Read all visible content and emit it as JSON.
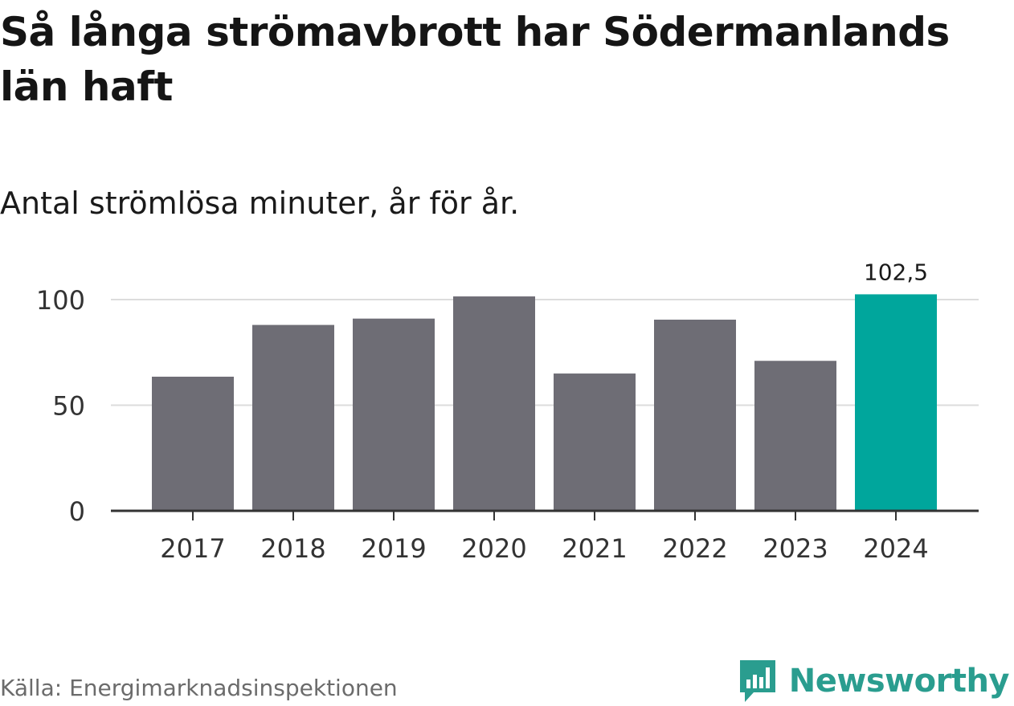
{
  "header": {
    "title": "Så långa strömavbrott har Södermanlands län haft",
    "subtitle": "Antal strömlösa minuter, år för år."
  },
  "footer": {
    "source": "Källa: Energimarknadsinspektionen",
    "brand": "Newsworthy",
    "brand_icon": "bar-chart-speech-bubble-icon"
  },
  "colors": {
    "bar": "#6e6d75",
    "highlight": "#00a69c",
    "grid": "#dcdcdc",
    "axis": "#333333",
    "brand": "#2a9d8f"
  },
  "chart_data": {
    "type": "bar",
    "title": "Så långa strömavbrott har Södermanlands län haft",
    "subtitle": "Antal strömlösa minuter, år för år.",
    "xlabel": "",
    "ylabel": "",
    "categories": [
      "2017",
      "2018",
      "2019",
      "2020",
      "2021",
      "2022",
      "2023",
      "2024"
    ],
    "values": [
      63.5,
      88,
      91,
      101.5,
      65,
      90.5,
      71,
      102.5
    ],
    "highlight_index": 7,
    "data_labels": [
      {
        "index": 7,
        "text": "102,5"
      }
    ],
    "yticks": [
      0,
      50,
      100
    ],
    "ylim": [
      0,
      105
    ],
    "grid": true
  }
}
